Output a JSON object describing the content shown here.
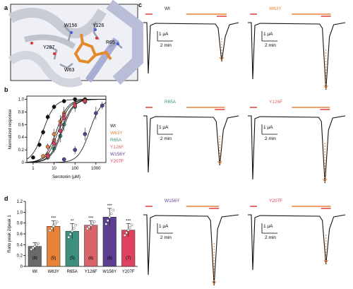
{
  "panel_labels": {
    "a": "a",
    "b": "b",
    "c": "c",
    "d": "d"
  },
  "colors": {
    "WT": "#111111",
    "W63Y": "#e8823a",
    "R65A": "#3d8f7f",
    "Y126F": "#d8656a",
    "W156Y": "#5d3f8f",
    "Y207F": "#e0415e",
    "ligand": "#e28a2c",
    "trace": "#111111"
  },
  "panel_a": {
    "residue_labels": [
      "W156",
      "Y126",
      "R65",
      "Y207",
      "W63"
    ]
  },
  "chart_data": [
    {
      "type": "scatter",
      "panel": "b",
      "xlabel": "Serotonin (µM)",
      "ylabel": "Normalized response",
      "xscale": "log",
      "xlim": [
        0.5,
        3000
      ],
      "ylim": [
        0,
        1.05
      ],
      "xticks": [
        "1",
        "10",
        "100",
        "1000"
      ],
      "yticks": [
        "0",
        "0.2",
        "0.4",
        "0.6",
        "0.8",
        "1.0"
      ],
      "legend": [
        "Wt",
        "W63Y",
        "R65A",
        "Y126F",
        "W156Y",
        "Y207F"
      ],
      "legend_placement": "right",
      "series": [
        {
          "name": "Wt",
          "ec50": 3.0,
          "x": [
            1,
            2,
            3,
            5,
            10,
            30,
            100,
            300
          ],
          "y": [
            0.08,
            0.28,
            0.48,
            0.72,
            0.88,
            0.97,
            1.0,
            1.0
          ],
          "err": [
            0.03,
            0.04,
            0.05,
            0.05,
            0.04,
            0.03,
            0.02,
            0.02
          ]
        },
        {
          "name": "W63Y",
          "ec50": 13,
          "x": [
            3,
            5,
            10,
            20,
            30,
            100,
            300
          ],
          "y": [
            0.1,
            0.25,
            0.45,
            0.65,
            0.78,
            0.93,
            0.98
          ],
          "err": [
            0.04,
            0.05,
            0.08,
            0.1,
            0.1,
            0.05,
            0.03
          ]
        },
        {
          "name": "R65A",
          "ec50": 25,
          "x": [
            5,
            10,
            20,
            30,
            100,
            300
          ],
          "y": [
            0.08,
            0.22,
            0.42,
            0.6,
            0.88,
            0.96
          ],
          "err": [
            0.04,
            0.06,
            0.1,
            0.1,
            0.08,
            0.04
          ]
        },
        {
          "name": "Y126F",
          "ec50": 16,
          "x": [
            5,
            10,
            20,
            30,
            100,
            300
          ],
          "y": [
            0.12,
            0.35,
            0.6,
            0.75,
            0.93,
            0.97
          ],
          "err": [
            0.04,
            0.08,
            0.1,
            0.08,
            0.05,
            0.03
          ]
        },
        {
          "name": "W156Y",
          "ec50": 500,
          "x": [
            30,
            100,
            300,
            1000,
            2000
          ],
          "y": [
            0.05,
            0.2,
            0.45,
            0.78,
            0.9
          ],
          "err": [
            0.03,
            0.06,
            0.1,
            0.1,
            0.06
          ]
        },
        {
          "name": "Y207F",
          "ec50": 22,
          "x": [
            5,
            10,
            20,
            30,
            100,
            300
          ],
          "y": [
            0.1,
            0.3,
            0.5,
            0.7,
            0.9,
            0.97
          ],
          "err": [
            0.04,
            0.08,
            0.12,
            0.1,
            0.06,
            0.03
          ]
        }
      ]
    },
    {
      "type": "bar",
      "panel": "d",
      "ylabel": "Ratio peak 2/peak 1",
      "ylim": [
        0,
        1.2
      ],
      "yticks": [
        "0",
        "0.2",
        "0.4",
        "0.6",
        "0.8",
        "1.0",
        "1.2"
      ],
      "categories": [
        "Wt",
        "W63Y",
        "R65A",
        "Y126F",
        "W156Y",
        "Y207F"
      ],
      "values": [
        0.37,
        0.74,
        0.65,
        0.76,
        0.91,
        0.67
      ],
      "errors": [
        0.07,
        0.1,
        0.14,
        0.08,
        0.16,
        0.12
      ],
      "n": [
        "(8)",
        "(5)",
        "(5)",
        "(6)",
        "(6)",
        "(7)"
      ],
      "significance": [
        "",
        "***",
        "**",
        "***",
        "***",
        "***"
      ]
    }
  ],
  "panel_c": {
    "traces": [
      {
        "name": "Wt",
        "scale_current": "1 µA",
        "scale_time": "2 min"
      },
      {
        "name": "W63Y",
        "scale_current": "1 µA",
        "scale_time": "2 min"
      },
      {
        "name": "R65A",
        "scale_current": "1 µA",
        "scale_time": "2 min"
      },
      {
        "name": "Y126F",
        "scale_current": "1 µA",
        "scale_time": "2 min"
      },
      {
        "name": "W156Y",
        "scale_current": "1 µA",
        "scale_time": "2 min"
      },
      {
        "name": "Y207F",
        "scale_current": "1 µA",
        "scale_time": "2 min"
      }
    ]
  }
}
